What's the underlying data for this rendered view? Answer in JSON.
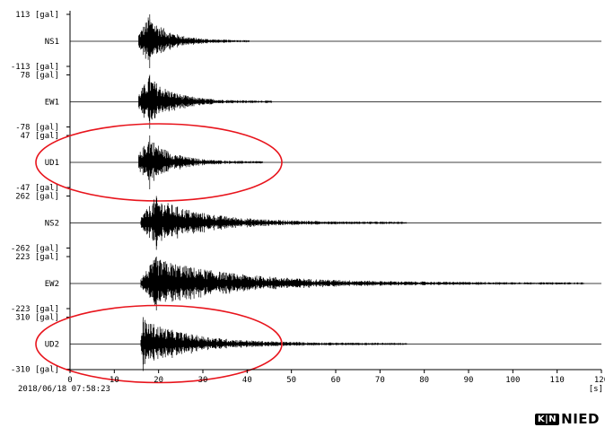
{
  "chart_data": {
    "type": "line",
    "timestamp": "2018/06/18 07:58:23",
    "x_ticks": [
      0,
      10,
      20,
      30,
      40,
      50,
      60,
      70,
      80,
      90,
      100,
      110,
      120
    ],
    "x_unit": "[s]",
    "xlim": [
      0,
      120
    ],
    "channels": [
      {
        "name": "NS1",
        "max_label": "113 [gal]",
        "min_label": "-113 [gal]",
        "peak": 113,
        "onset": 15.5,
        "peak_time": 18.0,
        "duration": 25,
        "level": 0.28,
        "highlight": false
      },
      {
        "name": "EW1",
        "max_label": "78 [gal]",
        "min_label": "-78 [gal]",
        "peak": 78,
        "onset": 15.5,
        "peak_time": 18.0,
        "duration": 30,
        "level": 0.3,
        "highlight": false
      },
      {
        "name": "UD1",
        "max_label": "47 [gal]",
        "min_label": "-47 [gal]",
        "peak": 47,
        "onset": 15.5,
        "peak_time": 18.0,
        "duration": 28,
        "level": 0.3,
        "highlight": true
      },
      {
        "name": "NS2",
        "max_label": "262 [gal]",
        "min_label": "-262 [gal]",
        "peak": 262,
        "onset": 16.0,
        "peak_time": 19.5,
        "duration": 60,
        "level": 0.22,
        "highlight": false
      },
      {
        "name": "EW2",
        "max_label": "223 [gal]",
        "min_label": "-223 [gal]",
        "peak": 223,
        "onset": 16.0,
        "peak_time": 19.5,
        "duration": 100,
        "level": 0.22,
        "highlight": false
      },
      {
        "name": "UD2",
        "max_label": "310 [gal]",
        "min_label": "-310 [gal]",
        "peak": 310,
        "onset": 16.0,
        "peak_time": 16.5,
        "duration": 60,
        "level": 0.2,
        "highlight": true
      }
    ],
    "highlight_color": "#e8141c",
    "trace_color": "#000000"
  },
  "logo": {
    "badge": "K|N",
    "text": "NIED"
  }
}
